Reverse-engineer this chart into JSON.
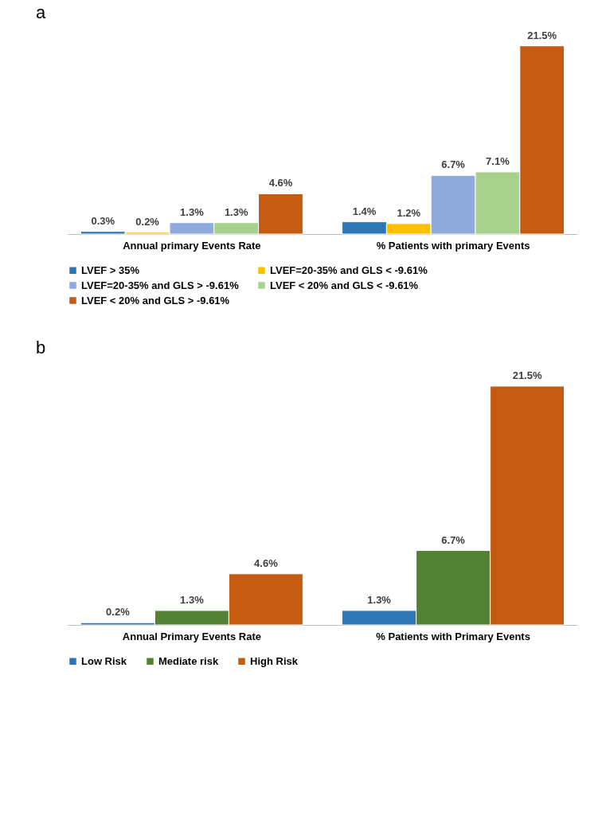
{
  "chart_data": [
    {
      "type": "bar",
      "title": "a",
      "categories": [
        "Annual primary Events Rate",
        "% Patients with  primary Events"
      ],
      "legend": "bottom",
      "series": [
        {
          "name": "LVEF > 35%",
          "color": "#2e75b6",
          "values": [
            0.3,
            1.4
          ],
          "value_labels": [
            "0.3%",
            "1.4%"
          ]
        },
        {
          "name": "LVEF=20-35% and GLS < -9.61%",
          "color": "#ffc000",
          "values": [
            0.2,
            1.2
          ],
          "value_labels": [
            "0.2%",
            "1.2%"
          ]
        },
        {
          "name": "LVEF=20-35% and GLS > -9.61%",
          "color": "#8faadc",
          "values": [
            1.3,
            6.7
          ],
          "value_labels": [
            "1.3%",
            "6.7%"
          ]
        },
        {
          "name": "LVEF < 20% and GLS < -9.61%",
          "color": "#a9d18e",
          "values": [
            1.3,
            7.1
          ],
          "value_labels": [
            "1.3%",
            "7.1%"
          ]
        },
        {
          "name": "LVEF < 20% and GLS > -9.61%",
          "color": "#c55a11",
          "values": [
            4.6,
            21.5
          ],
          "value_labels": [
            "4.6%",
            "21.5%"
          ]
        }
      ]
    },
    {
      "type": "bar",
      "title": "b",
      "categories": [
        "Annual Primary Events Rate",
        "% Patients with  Primary Events"
      ],
      "legend": "bottom",
      "series": [
        {
          "name": "Low Risk",
          "color": "#2e75b6",
          "values": [
            0.2,
            1.3
          ],
          "value_labels": [
            "0.2%",
            "1.3%"
          ]
        },
        {
          "name": "Mediate risk",
          "color": "#548235",
          "values": [
            1.3,
            6.7
          ],
          "value_labels": [
            "1.3%",
            "6.7%"
          ]
        },
        {
          "name": "High Risk",
          "color": "#c55a11",
          "values": [
            4.6,
            21.5
          ],
          "value_labels": [
            "4.6%",
            "21.5%"
          ]
        }
      ]
    }
  ]
}
